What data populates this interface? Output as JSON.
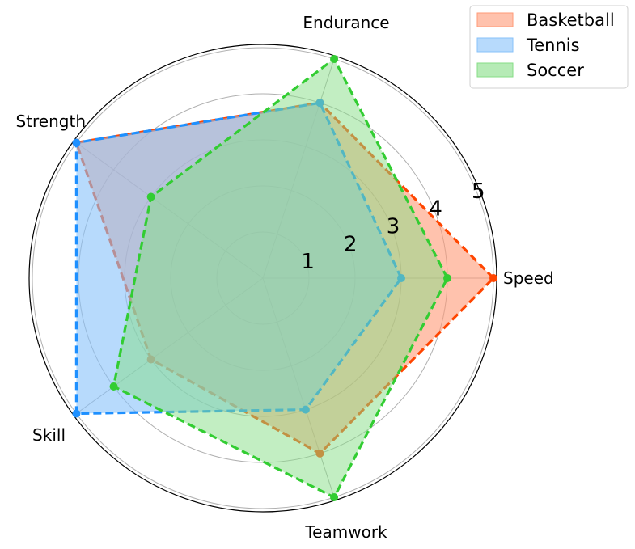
{
  "chart_data": {
    "type": "radar",
    "axes": [
      "Speed",
      "Endurance",
      "Strength",
      "Skill",
      "Teamwork"
    ],
    "r_ticks": [
      "1",
      "2",
      "3",
      "4",
      "5"
    ],
    "r_max": 5,
    "grid": true,
    "legend_position": "top-right",
    "series": [
      {
        "name": "Basketball",
        "values": [
          5,
          4,
          5,
          3,
          4
        ],
        "color": "#FF4500",
        "fill": "#FF9A76",
        "fill_opacity": 0.6
      },
      {
        "name": "Tennis",
        "values": [
          3,
          4,
          5,
          5,
          3
        ],
        "color": "#1E90FF",
        "fill": "#87C2FA",
        "fill_opacity": 0.6
      },
      {
        "name": "Soccer",
        "values": [
          4,
          5,
          3,
          4,
          5
        ],
        "color": "#32CD32",
        "fill": "#85DE85",
        "fill_opacity": 0.5
      }
    ]
  }
}
